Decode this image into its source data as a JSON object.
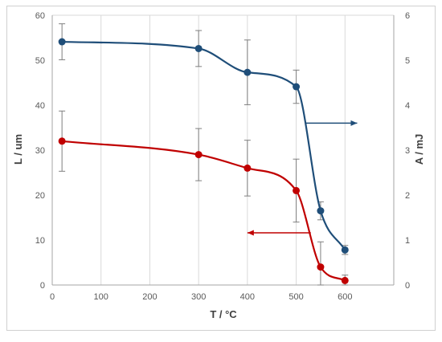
{
  "chart_data": {
    "type": "line",
    "xlabel": "T / °C",
    "ylabel_left": "L / um",
    "ylabel_right": "A / mJ",
    "xlim": [
      0,
      700
    ],
    "ylim_left": [
      0,
      60
    ],
    "ylim_right": [
      0,
      6
    ],
    "x_ticks": [
      "0",
      "100",
      "200",
      "300",
      "400",
      "500",
      "600"
    ],
    "y_left_ticks": [
      "0",
      "10",
      "20",
      "30",
      "40",
      "50",
      "60"
    ],
    "y_right_ticks": [
      "0",
      "1",
      "2",
      "3",
      "4",
      "5",
      "6"
    ],
    "grid": "vertical",
    "legend": "none",
    "series": [
      {
        "axis": "right",
        "color": "#1f4e79",
        "x": [
          20,
          300,
          400,
          500,
          550,
          600
        ],
        "y": [
          5.41,
          5.26,
          4.73,
          4.41,
          1.65,
          0.78
        ],
        "err": [
          0.4,
          0.4,
          0.72,
          0.37,
          0.2,
          0.1
        ]
      },
      {
        "axis": "left",
        "color": "#c00000",
        "x": [
          20,
          300,
          400,
          500,
          550,
          600
        ],
        "y": [
          32,
          29,
          26,
          21,
          4,
          1
        ],
        "err": [
          6.7,
          5.8,
          6.2,
          7.0,
          5.6,
          1.2
        ]
      }
    ],
    "annotations": [
      {
        "type": "arrow",
        "target": "right-axis",
        "color": "#1f4e79",
        "from": [
          520,
          3.6
        ],
        "to": [
          625,
          3.6
        ]
      },
      {
        "type": "arrow",
        "target": "left-axis",
        "color": "#c00000",
        "from": [
          530,
          11.6
        ],
        "to": [
          400,
          11.6
        ]
      }
    ]
  }
}
